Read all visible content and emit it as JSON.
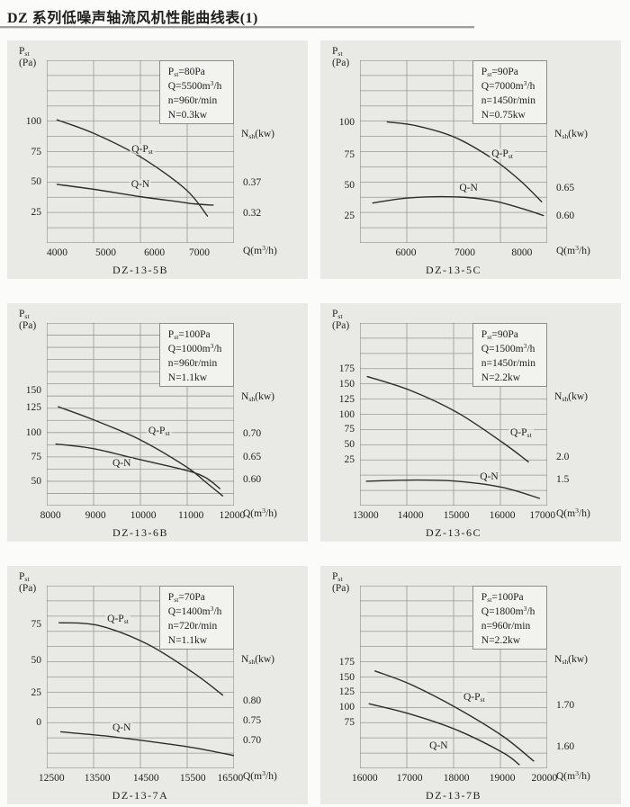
{
  "page": {
    "title": "DZ 系列低噪声轴流风机性能曲线表(1)"
  },
  "axis": {
    "y_label_line1": "P~st~",
    "y_label_line2": "(Pa)",
    "right_label": "N~sh~(kw)",
    "x_label": "Q(m^3^/h)",
    "x_unit": "m3/h",
    "y_unit": "Pa",
    "right_unit": "kw"
  },
  "chart_data": [
    {
      "name": "DZ-13-5B",
      "type": "line",
      "info": [
        "P~st~=80Pa",
        "Q=5500m^3^/h",
        "n=960r/min",
        "N=0.3kw"
      ],
      "x_ticks": [
        {
          "t": "4000",
          "v": 4000,
          "p": 5.5
        },
        {
          "t": "5000",
          "v": 5000,
          "p": 31.5
        },
        {
          "t": "6000",
          "v": 6000,
          "p": 57.5
        },
        {
          "t": "7000",
          "v": 7000,
          "p": 81.5
        }
      ],
      "y_ticks": [
        {
          "t": "100",
          "v": 100,
          "p": 33.3
        },
        {
          "t": "75",
          "v": 75,
          "p": 50
        },
        {
          "t": "50",
          "v": 50,
          "p": 66.7
        },
        {
          "t": "25",
          "v": 25,
          "p": 83.3
        }
      ],
      "r_ticks": [
        {
          "t": "0.37",
          "p": 67
        },
        {
          "t": "0.32",
          "p": 83.5
        }
      ],
      "rows": 12,
      "cols": 4,
      "series": [
        {
          "name": "Q-P~st~",
          "points": [
            [
              4000,
              101
            ],
            [
              4770,
              90
            ],
            [
              5740,
              71
            ],
            [
              6710,
              44
            ],
            [
              7170,
              22
            ]
          ],
          "label_pos": [
            51,
            49
          ]
        },
        {
          "name": "Q-N",
          "points": [
            [
              4000,
              48
            ],
            [
              4770,
              44
            ],
            [
              5740,
              38
            ],
            [
              6520,
              34
            ],
            [
              6900,
              32
            ],
            [
              7290,
              31
            ]
          ],
          "label_pos": [
            50,
            68
          ]
        }
      ]
    },
    {
      "name": "DZ-13-5C",
      "type": "line",
      "info": [
        "P~st~=90Pa",
        "Q=7000m^3^/h",
        "n=1450r/min",
        "N=0.75kw"
      ],
      "x_ticks": [
        {
          "t": "6000",
          "v": 6000,
          "p": 24.5
        },
        {
          "t": "7000",
          "v": 7000,
          "p": 56
        },
        {
          "t": "8000",
          "v": 8000,
          "p": 86.5
        }
      ],
      "y_ticks": [
        {
          "t": "100",
          "v": 100,
          "p": 33.8
        },
        {
          "t": "75",
          "v": 75,
          "p": 51.5
        },
        {
          "t": "50",
          "v": 50,
          "p": 68.5
        },
        {
          "t": "25",
          "v": 25,
          "p": 85
        }
      ],
      "r_ticks": [
        {
          "t": "0.65",
          "p": 70
        },
        {
          "t": "0.60",
          "p": 85
        }
      ],
      "rows": 12,
      "cols": 4,
      "series": [
        {
          "name": "Q-P~st~",
          "points": [
            [
              5680,
              100
            ],
            [
              6180,
              97
            ],
            [
              6830,
              88
            ],
            [
              7480,
              71
            ],
            [
              7970,
              53
            ],
            [
              8340,
              36
            ]
          ],
          "label_pos": [
            76,
            51
          ]
        },
        {
          "name": "Q-N",
          "points": [
            [
              5430,
              35
            ],
            [
              6020,
              39
            ],
            [
              6830,
              40
            ],
            [
              7480,
              37
            ],
            [
              7970,
              31
            ],
            [
              8370,
              25
            ]
          ],
          "label_pos": [
            58,
            70
          ]
        }
      ]
    },
    {
      "name": "DZ-13-6B",
      "type": "line",
      "info": [
        "P~st~=100Pa",
        "Q=1000m^3^/h",
        "n=960r/min",
        "N=1.1kw"
      ],
      "x_ticks": [
        {
          "t": "8000",
          "v": 8000,
          "p": 2
        },
        {
          "t": "9000",
          "v": 9000,
          "p": 26
        },
        {
          "t": "10000",
          "v": 10000,
          "p": 51.5
        },
        {
          "t": "11000",
          "v": 11000,
          "p": 77
        },
        {
          "t": "12000",
          "v": 12000,
          "p": 99
        }
      ],
      "y_ticks": [
        {
          "t": "150",
          "v": 150,
          "p": 36.9
        },
        {
          "t": "125",
          "v": 125,
          "p": 46.3
        },
        {
          "t": "100",
          "v": 100,
          "p": 60
        },
        {
          "t": "75",
          "v": 75,
          "p": 73.3
        },
        {
          "t": "50",
          "v": 50,
          "p": 86.7
        }
      ],
      "r_ticks": [
        {
          "t": "0.70",
          "p": 60.5
        },
        {
          "t": "0.65",
          "p": 73.5
        },
        {
          "t": "0.60",
          "p": 85.5
        }
      ],
      "rows": 15,
      "cols": 4,
      "series": [
        {
          "name": "Q-P~st~",
          "points": [
            [
              8170,
              132
            ],
            [
              8930,
              118
            ],
            [
              9960,
              96
            ],
            [
              10990,
              66
            ],
            [
              11420,
              49
            ],
            [
              11790,
              34
            ]
          ],
          "label_pos": [
            60,
            59
          ]
        },
        {
          "name": "Q-N",
          "points": [
            [
              8120,
              91
            ],
            [
              8930,
              86
            ],
            [
              9960,
              74
            ],
            [
              10990,
              62
            ],
            [
              11420,
              54
            ],
            [
              11730,
              42
            ]
          ],
          "label_pos": [
            40,
            77
          ]
        }
      ]
    },
    {
      "name": "DZ-13-6C",
      "type": "line",
      "info": [
        "P~st~=90Pa",
        "Q=1500m^3^/h",
        "n=1450r/min",
        "N=2.2kw"
      ],
      "x_ticks": [
        {
          "t": "13000",
          "v": 13000,
          "p": 3
        },
        {
          "t": "14000",
          "v": 14000,
          "p": 27
        },
        {
          "t": "15000",
          "v": 15000,
          "p": 51.5
        },
        {
          "t": "16000",
          "v": 16000,
          "p": 76
        },
        {
          "t": "17000",
          "v": 17000,
          "p": 97.5
        }
      ],
      "y_ticks": [
        {
          "t": "175",
          "v": 175,
          "p": 25
        },
        {
          "t": "150",
          "v": 150,
          "p": 33.3
        },
        {
          "t": "125",
          "v": 125,
          "p": 41.7
        },
        {
          "t": "100",
          "v": 100,
          "p": 50
        },
        {
          "t": "75",
          "v": 75,
          "p": 58.3
        },
        {
          "t": "50",
          "v": 50,
          "p": 66.7
        },
        {
          "t": "25",
          "v": 25,
          "p": 75
        }
      ],
      "r_ticks": [
        {
          "t": "2.0",
          "p": 73.5
        },
        {
          "t": "1.5",
          "p": 85.5
        }
      ],
      "rows": 12,
      "cols": 4,
      "series": [
        {
          "name": "Q-P~st~",
          "points": [
            [
              13040,
              162
            ],
            [
              14020,
              139
            ],
            [
              15070,
              103
            ],
            [
              16090,
              54
            ],
            [
              16680,
              22
            ]
          ],
          "label_pos": [
            86,
            60
          ]
        },
        {
          "name": "Q-N",
          "points": [
            [
              13020,
              -10
            ],
            [
              14140,
              -8
            ],
            [
              15070,
              -10
            ],
            [
              16090,
              -20
            ],
            [
              16930,
              -38
            ]
          ],
          "label_pos": [
            69,
            84
          ]
        }
      ]
    },
    {
      "name": "DZ-13-7A",
      "type": "line",
      "info": [
        "P~st~=70Pa",
        "Q=1400m^3^/h",
        "n=720r/min",
        "N=1.1kw"
      ],
      "x_ticks": [
        {
          "t": "12500",
          "v": 12500,
          "p": 2.5
        },
        {
          "t": "13500",
          "v": 13500,
          "p": 27
        },
        {
          "t": "14500",
          "v": 14500,
          "p": 53
        },
        {
          "t": "15500",
          "v": 15500,
          "p": 78
        },
        {
          "t": "16500",
          "v": 16500,
          "p": 98
        }
      ],
      "y_ticks": [
        {
          "t": "75",
          "v": 75,
          "p": 21
        },
        {
          "t": "50",
          "v": 50,
          "p": 41
        },
        {
          "t": "25",
          "v": 25,
          "p": 58.5
        },
        {
          "t": "0",
          "v": 0,
          "p": 75
        }
      ],
      "r_ticks": [
        {
          "t": "0.80",
          "p": 63
        },
        {
          "t": "0.75",
          "p": 74
        },
        {
          "t": "0.70",
          "p": 84.5
        }
      ],
      "rows": 12,
      "cols": 4,
      "series": [
        {
          "name": "Q-P~st~",
          "points": [
            [
              12670,
              76
            ],
            [
              13540,
              74
            ],
            [
              14630,
              60
            ],
            [
              15670,
              38
            ],
            [
              16330,
              21
            ]
          ],
          "label_pos": [
            38,
            18
          ]
        },
        {
          "name": "Q-N",
          "points": [
            [
              12710,
              -7
            ],
            [
              13670,
              -10
            ],
            [
              14630,
              -14
            ],
            [
              15670,
              -19
            ],
            [
              16580,
              -25
            ]
          ],
          "label_pos": [
            40,
            78
          ]
        }
      ]
    },
    {
      "name": "DZ-13-7B",
      "type": "line",
      "info": [
        "P~st~=100Pa",
        "Q=1800m^3^/h",
        "n=960r/min",
        "N=2.2kw"
      ],
      "x_ticks": [
        {
          "t": "16000",
          "v": 16000,
          "p": 2.5
        },
        {
          "t": "17000",
          "v": 17000,
          "p": 26.5
        },
        {
          "t": "18000",
          "v": 18000,
          "p": 51.5
        },
        {
          "t": "19000",
          "v": 19000,
          "p": 76
        },
        {
          "t": "20000",
          "v": 20000,
          "p": 98.5
        }
      ],
      "y_ticks": [
        {
          "t": "175",
          "v": 175,
          "p": 41.7
        },
        {
          "t": "150",
          "v": 150,
          "p": 50
        },
        {
          "t": "125",
          "v": 125,
          "p": 58.3
        },
        {
          "t": "100",
          "v": 100,
          "p": 66.7
        },
        {
          "t": "75",
          "v": 75,
          "p": 75
        }
      ],
      "r_ticks": [
        {
          "t": "1.70",
          "p": 65.5
        },
        {
          "t": "1.60",
          "p": 88
        }
      ],
      "rows": 12,
      "cols": 4,
      "series": [
        {
          "name": "Q-P~st~",
          "points": [
            [
              16230,
              160
            ],
            [
              17020,
              138
            ],
            [
              18050,
              99
            ],
            [
              19070,
              53
            ],
            [
              19760,
              12
            ]
          ],
          "label_pos": [
            61,
            61
          ]
        },
        {
          "name": "Q-N",
          "points": [
            [
              16100,
              106
            ],
            [
              17020,
              89
            ],
            [
              18050,
              63
            ],
            [
              19070,
              26
            ],
            [
              19440,
              6
            ]
          ],
          "label_pos": [
            42,
            87.5
          ]
        }
      ]
    }
  ]
}
